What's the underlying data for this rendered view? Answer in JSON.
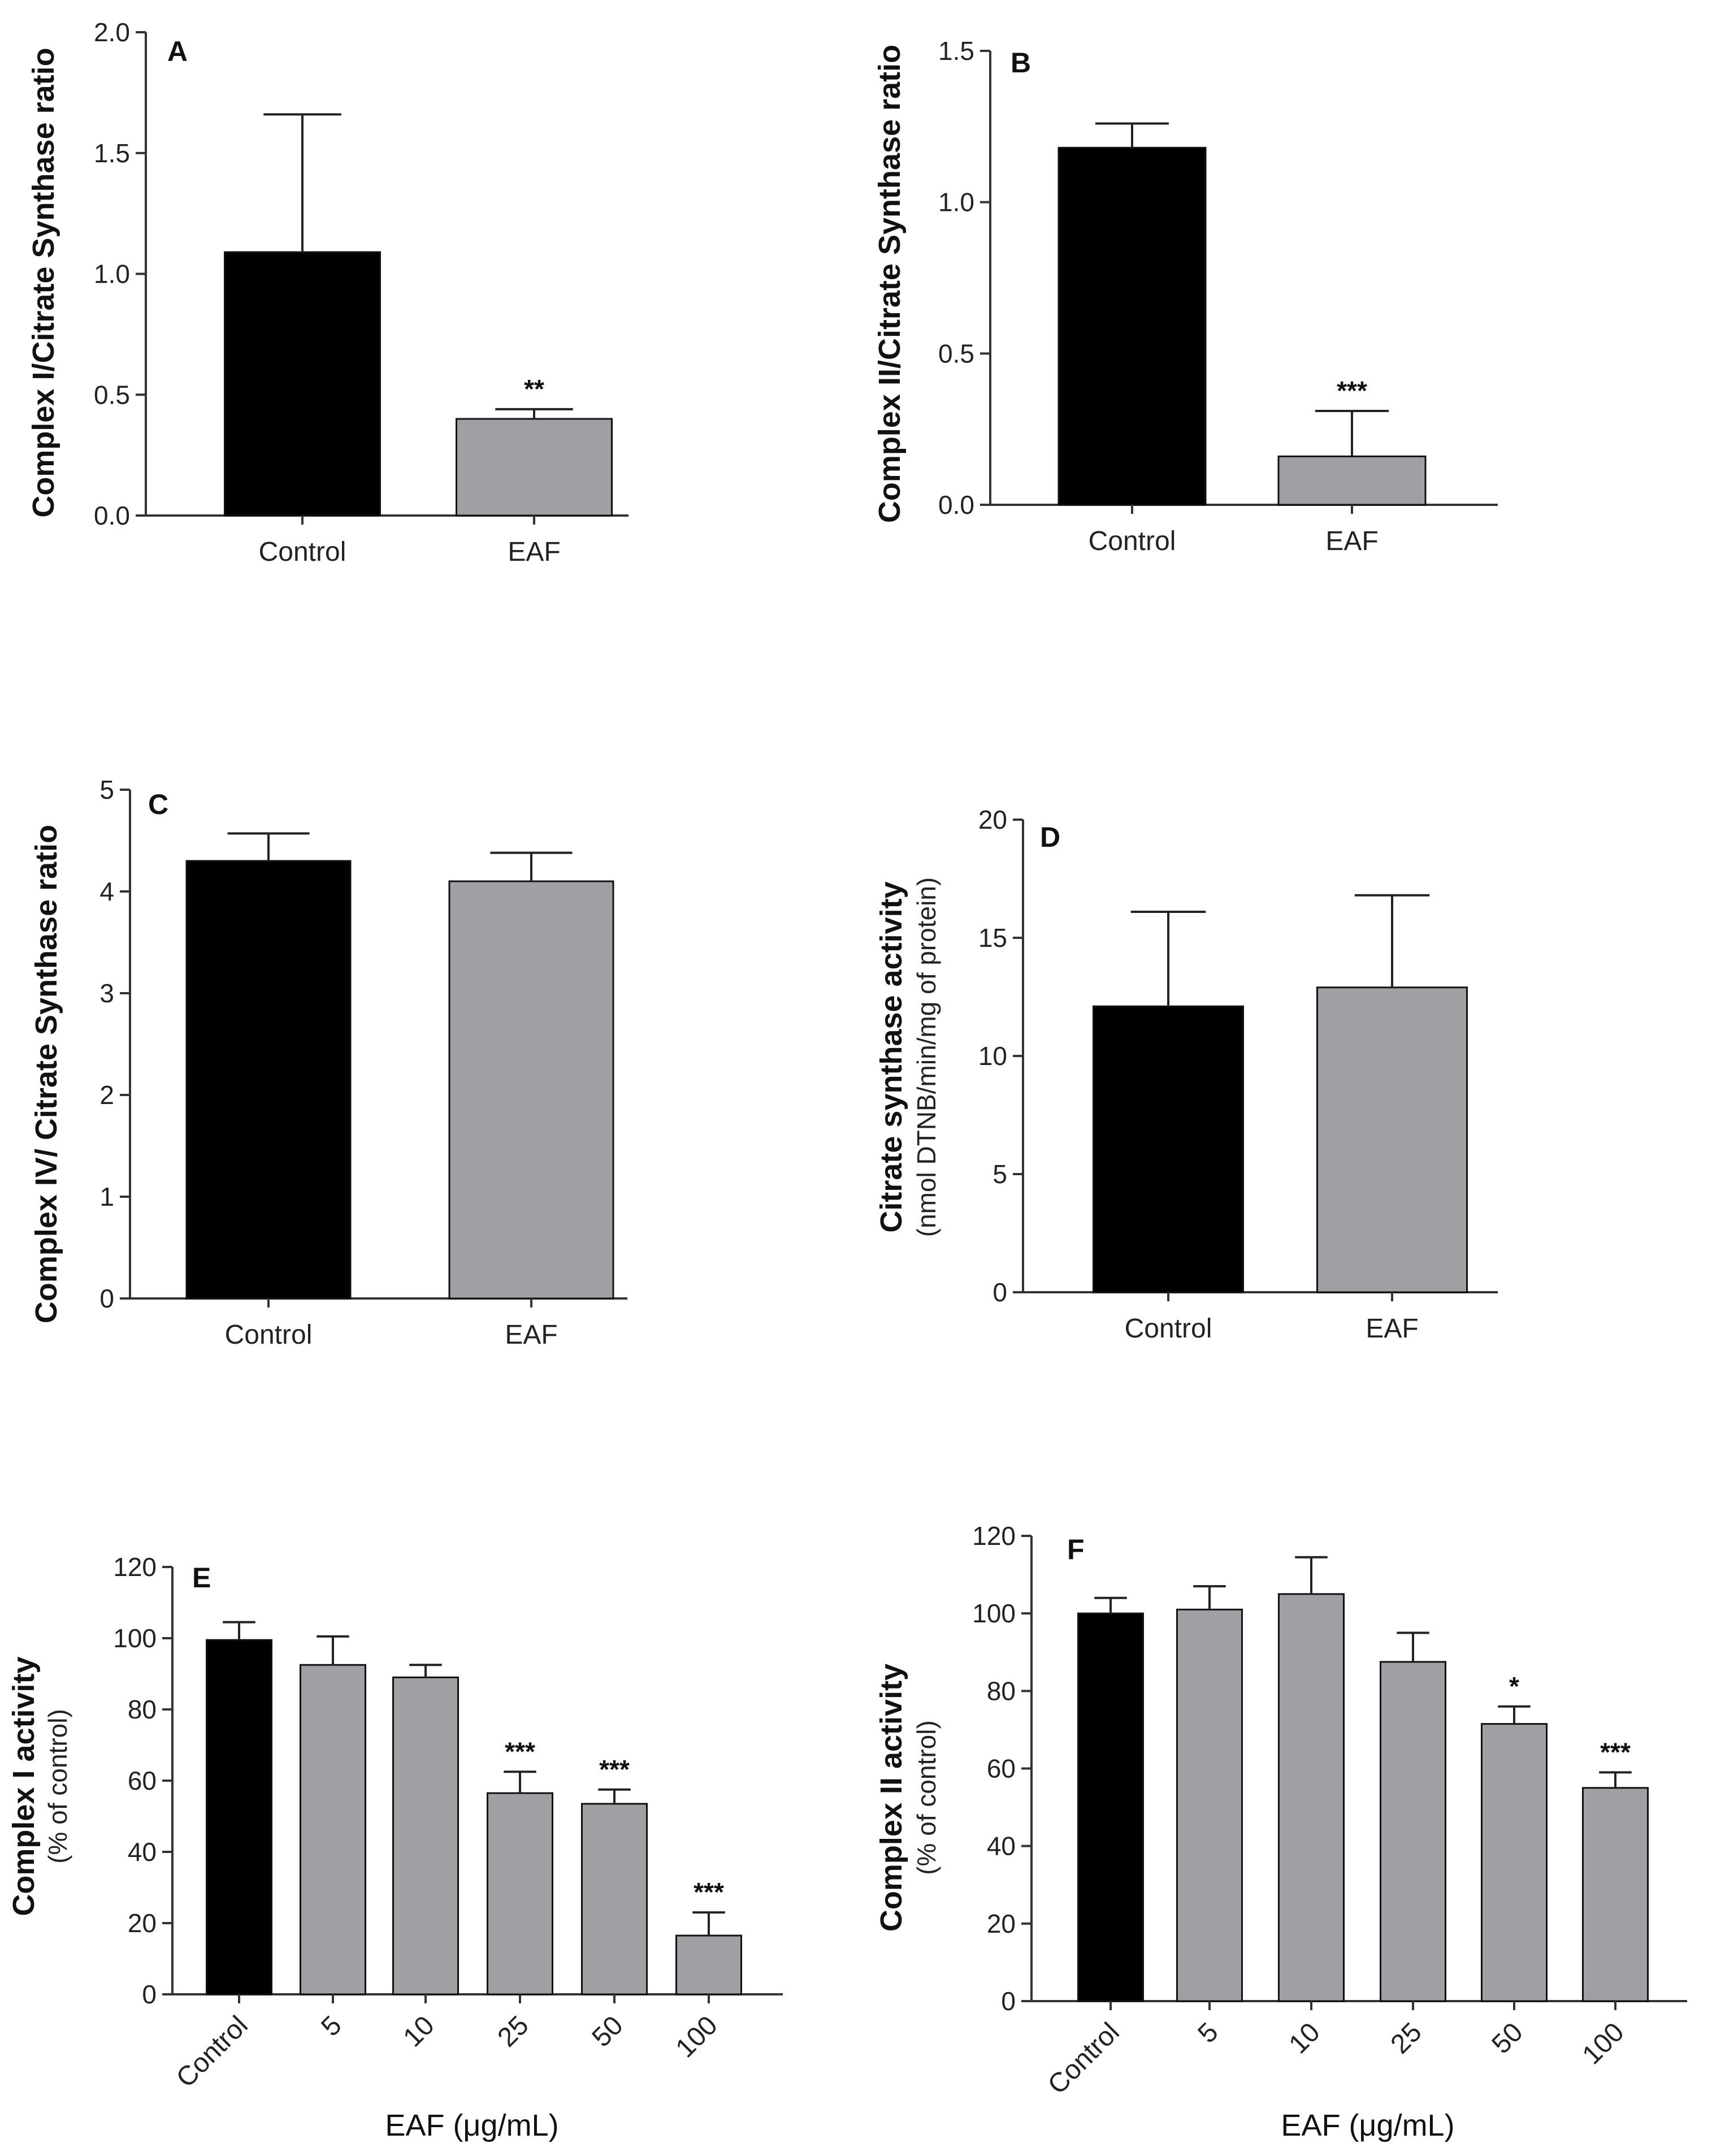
{
  "colors": {
    "control": "#000000",
    "treated": "#a0a0a4",
    "axis": "#333333"
  },
  "chart_data": [
    {
      "panel": "A",
      "type": "bar",
      "ylabel": "Complex I/Citrate Synthase ratio",
      "ysub": "",
      "xlabel": "",
      "ylim": [
        0,
        2.0
      ],
      "yticks": [
        0.0,
        0.5,
        1.0,
        1.5,
        2.0
      ],
      "ytick_labels": [
        "0.0",
        "0.5",
        "1.0",
        "1.5",
        "2.0"
      ],
      "categories": [
        "Control",
        "EAF"
      ],
      "values": [
        1.09,
        0.4
      ],
      "errors": [
        0.57,
        0.04
      ],
      "significance": [
        "",
        "**"
      ]
    },
    {
      "panel": "B",
      "type": "bar",
      "ylabel": "Complex II/Citrate Synthase ratio",
      "ysub": "",
      "xlabel": "",
      "ylim": [
        0,
        1.5
      ],
      "yticks": [
        0.0,
        0.5,
        1.0,
        1.5
      ],
      "ytick_labels": [
        "0.0",
        "0.5",
        "1.0",
        "1.5"
      ],
      "categories": [
        "Control",
        "EAF"
      ],
      "values": [
        1.18,
        0.16
      ],
      "errors": [
        0.08,
        0.15
      ],
      "significance": [
        "",
        "***"
      ]
    },
    {
      "panel": "C",
      "type": "bar",
      "ylabel": "Complex IV/ Citrate Synthase ratio",
      "ysub": "",
      "xlabel": "",
      "ylim": [
        0,
        5
      ],
      "yticks": [
        0,
        1,
        2,
        3,
        4,
        5
      ],
      "ytick_labels": [
        "0",
        "1",
        "2",
        "3",
        "4",
        "5"
      ],
      "categories": [
        "Control",
        "EAF"
      ],
      "values": [
        4.3,
        4.1
      ],
      "errors": [
        0.27,
        0.28
      ],
      "significance": [
        "",
        ""
      ]
    },
    {
      "panel": "D",
      "type": "bar",
      "ylabel": "Citrate synthase activity",
      "ysub": "(nmol DTNB/min/mg of protein)",
      "xlabel": "",
      "ylim": [
        0,
        20
      ],
      "yticks": [
        0,
        5,
        10,
        15,
        20
      ],
      "ytick_labels": [
        "0",
        "5",
        "10",
        "15",
        "20"
      ],
      "categories": [
        "Control",
        "EAF"
      ],
      "values": [
        12.1,
        12.9
      ],
      "errors": [
        4.0,
        3.9
      ],
      "significance": [
        "",
        ""
      ]
    },
    {
      "panel": "E",
      "type": "bar",
      "ylabel": "Complex I activity",
      "ysub": "(% of control)",
      "xlabel": "EAF (μg/mL)",
      "ylim": [
        0,
        120
      ],
      "yticks": [
        0,
        20,
        40,
        60,
        80,
        100,
        120
      ],
      "ytick_labels": [
        "0",
        "20",
        "40",
        "60",
        "80",
        "100",
        "120"
      ],
      "categories": [
        "Control",
        "5",
        "10",
        "25",
        "50",
        "100"
      ],
      "values": [
        99.5,
        92.5,
        89.0,
        56.5,
        53.5,
        16.5
      ],
      "errors": [
        5.0,
        8.0,
        3.5,
        6.0,
        4.0,
        6.5
      ],
      "significance": [
        "",
        "",
        "",
        "***",
        "***",
        "***"
      ]
    },
    {
      "panel": "F",
      "type": "bar",
      "ylabel": "Complex II activity",
      "ysub": "(% of control)",
      "xlabel": "EAF (μg/mL)",
      "ylim": [
        0,
        120
      ],
      "yticks": [
        0,
        20,
        40,
        60,
        80,
        100,
        120
      ],
      "ytick_labels": [
        "0",
        "20",
        "40",
        "60",
        "80",
        "100",
        "120"
      ],
      "categories": [
        "Control",
        "5",
        "10",
        "25",
        "50",
        "100"
      ],
      "values": [
        100.0,
        101.0,
        105.0,
        87.5,
        71.5,
        55.0
      ],
      "errors": [
        4.0,
        6.0,
        9.5,
        7.5,
        4.5,
        4.0
      ],
      "significance": [
        "",
        "",
        "",
        "",
        "*",
        "***"
      ]
    }
  ]
}
